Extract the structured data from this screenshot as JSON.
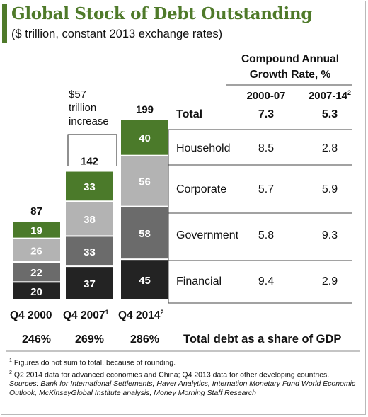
{
  "title": "Global Stock of Debt Outstanding",
  "subtitle": "($ trillion, constant 2013 exchange rates)",
  "colors": {
    "title": "#4f7a2a",
    "household": "#4b7a2a",
    "corporate": "#b3b3b3",
    "government": "#6b6b6b",
    "financial": "#232323"
  },
  "chart_data": {
    "type": "bar",
    "stacked": true,
    "categories": [
      "Q4 2000",
      "Q4 2007",
      "Q4 2014"
    ],
    "category_superscripts": [
      "",
      "1",
      "2"
    ],
    "totals": [
      87,
      142,
      199
    ],
    "series": [
      {
        "name": "Financial",
        "values": [
          20,
          37,
          45
        ]
      },
      {
        "name": "Government",
        "values": [
          22,
          33,
          58
        ]
      },
      {
        "name": "Corporate",
        "values": [
          26,
          38,
          56
        ]
      },
      {
        "name": "Household",
        "values": [
          19,
          33,
          40
        ]
      }
    ],
    "ylim": [
      0,
      200
    ],
    "grid": false,
    "gdp_share": [
      "246%",
      "269%",
      "286%"
    ],
    "gdp_share_label": "Total debt as a share of GDP",
    "annotation": [
      "$57",
      "trillion",
      "increase"
    ]
  },
  "table": {
    "header_line1": "Compound Annual",
    "header_line2": "Growth Rate, %",
    "col1": "2000-07",
    "col2": "2007-14",
    "col2_sup": "2",
    "rows": [
      {
        "label": "Total",
        "c1": "7.3",
        "c2": "5.3",
        "bold": true
      },
      {
        "label": "Household",
        "c1": "8.5",
        "c2": "2.8"
      },
      {
        "label": "Corporate",
        "c1": "5.7",
        "c2": "5.9"
      },
      {
        "label": "Government",
        "c1": "5.8",
        "c2": "9.3"
      },
      {
        "label": "Financial",
        "c1": "9.4",
        "c2": "2.9"
      }
    ]
  },
  "footnotes": {
    "n1_sup": "1",
    "n1": "Figures do not sum to total, because of rounding.",
    "n2_sup": "2",
    "n2": "Q2 2014 data for advanced economies and China; Q4 2013 data for other developing countries.",
    "sources_label": "Sources:",
    "sources": "Bank for International Settlements, Haver Analytics, Internation Monetary Fund World Economic Outlook, McKinseyGlobal Institute analysis, Money Morning Staff Research"
  }
}
